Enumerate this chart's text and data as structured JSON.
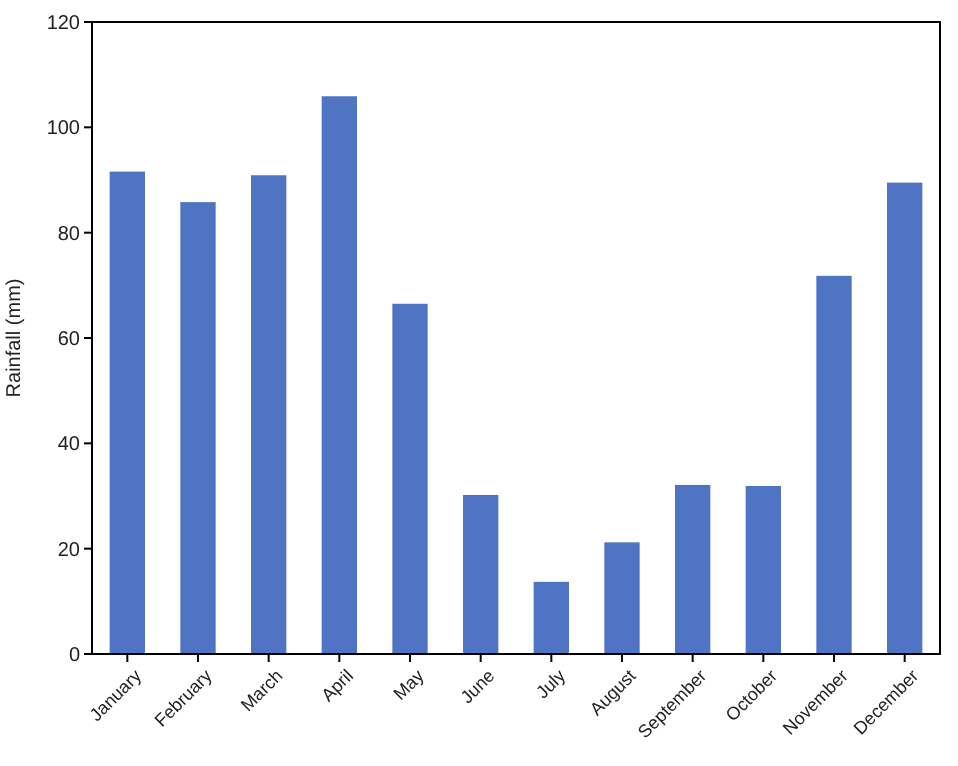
{
  "chart_data": {
    "type": "bar",
    "ylabel": "Rainfall (mm)",
    "categories": [
      "January",
      "February",
      "March",
      "April",
      "May",
      "June",
      "July",
      "August",
      "September",
      "October",
      "November",
      "December"
    ],
    "values": [
      91.6,
      85.8,
      90.9,
      105.9,
      66.5,
      30.2,
      13.7,
      21.2,
      32.1,
      31.9,
      71.8,
      89.5
    ],
    "color": "#4f74c4",
    "ylim": [
      0,
      120
    ],
    "yticks": [
      0,
      20,
      40,
      60,
      80,
      100,
      120
    ],
    "grid": false
  }
}
